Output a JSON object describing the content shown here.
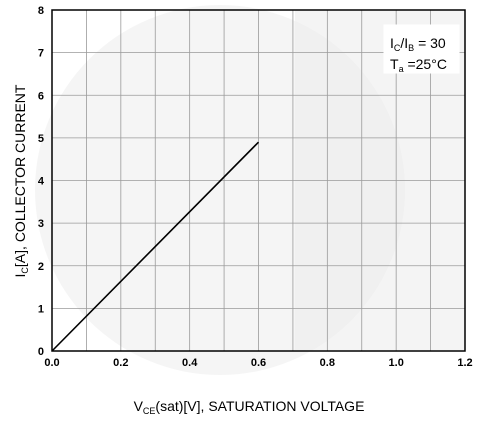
{
  "chart_data": {
    "type": "line",
    "title": "",
    "xlabel": {
      "main": "V",
      "sub": "CE",
      "rest": "(sat)[V], SATURATION VOLTAGE"
    },
    "ylabel": {
      "main": "I",
      "sub": "C",
      "rest": "[A], COLLECTOR CURRENT"
    },
    "xlim": [
      0.0,
      1.2
    ],
    "ylim": [
      0,
      8
    ],
    "x_ticks": [
      "0.0",
      "0.2",
      "0.4",
      "0.6",
      "0.8",
      "1.0",
      "1.2"
    ],
    "y_ticks": [
      "0",
      "1",
      "2",
      "3",
      "4",
      "5",
      "6",
      "7",
      "8"
    ],
    "grid": true,
    "grid_x_step": 0.1,
    "grid_y_step": 1,
    "annotation": {
      "line1": {
        "a": "I",
        "a_sub": "C",
        "mid": "/I",
        "b_sub": "B",
        "rest": " = 30"
      },
      "line2": {
        "a": "T",
        "a_sub": "a",
        "rest": " =25°C"
      }
    },
    "series": [
      {
        "x": [
          0.0,
          0.6
        ],
        "y": [
          0.0,
          4.9
        ],
        "color": "#000000"
      }
    ]
  }
}
